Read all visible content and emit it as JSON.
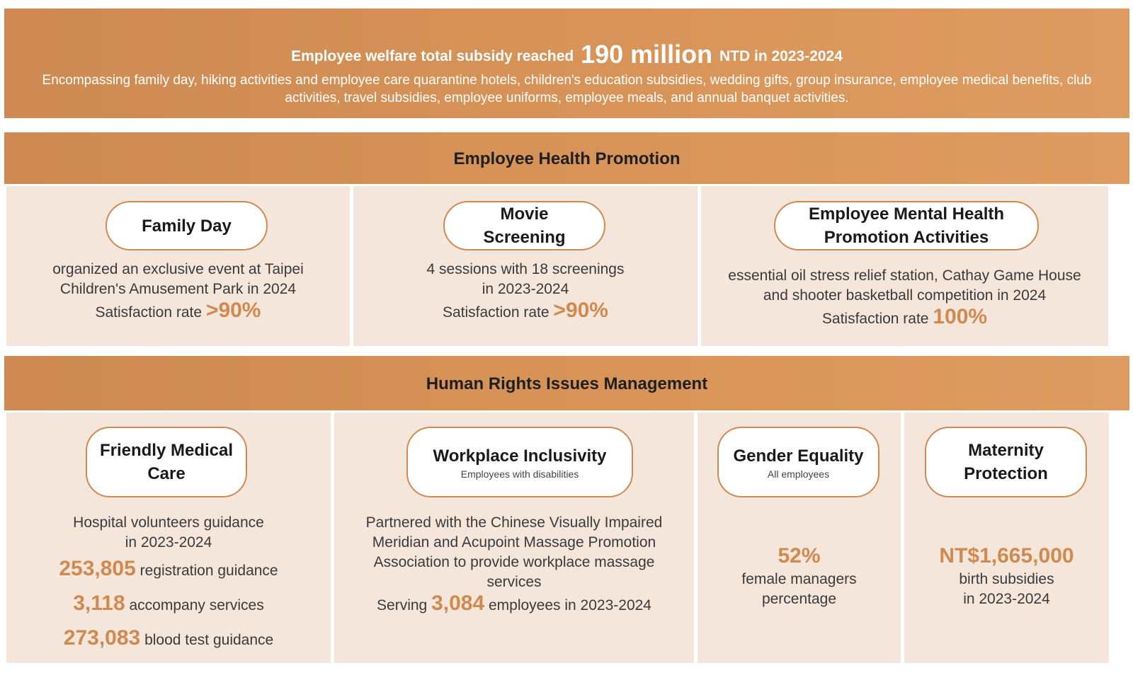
{
  "banner": {
    "headline_pre": "Employee welfare total subsidy reached",
    "headline_amount": "190 million",
    "headline_post": "NTD in 2023-2024",
    "description": "Encompassing family day, hiking activities and employee care quarantine hotels, children's education subsidies, wedding gifts, group insurance, employee medical benefits, club activities, travel subsidies, employee uniforms, employee meals, and annual banquet activities."
  },
  "health_promotion": {
    "title": "Employee Health Promotion",
    "cards": [
      {
        "title": "Family Day",
        "lines": [
          "organized an exclusive event at Taipei",
          "Children's Amusement Park in 2024"
        ],
        "rate_label": "Satisfaction rate",
        "rate_value": ">90%"
      },
      {
        "title_line1": "Movie",
        "title_line2": "Screening",
        "lines": [
          "4 sessions with 18 screenings",
          "in 2023-2024"
        ],
        "rate_label": "Satisfaction rate",
        "rate_value": ">90%"
      },
      {
        "title_line1": "Employee Mental Health",
        "title_line2": "Promotion Activities",
        "lines": [
          "essential oil stress relief station, Cathay Game House",
          "and shooter basketball competition in 2024"
        ],
        "rate_label": "Satisfaction rate",
        "rate_value": "100%"
      }
    ]
  },
  "human_rights": {
    "title": "Human Rights Issues Management",
    "cards": [
      {
        "title_line1": "Friendly Medical",
        "title_line2": "Care",
        "lines": [
          "Hospital volunteers guidance",
          "in 2023-2024"
        ],
        "stats": [
          {
            "value": "253,805",
            "label": "registration guidance"
          },
          {
            "value": "3,118",
            "label": "accompany services"
          },
          {
            "value": "273,083",
            "label": "blood test guidance"
          }
        ]
      },
      {
        "title": "Workplace Inclusivity",
        "subtitle": "Employees with disabilities",
        "lines": [
          "Partnered with the Chinese Visually Impaired",
          "Meridian and Acupoint Massage Promotion",
          "Association to provide workplace massage",
          "services"
        ],
        "serving_pre": "Serving",
        "serving_value": "3,084",
        "serving_post": "employees in 2023-2024"
      },
      {
        "title": "Gender Equality",
        "subtitle": "All employees",
        "value": "52%",
        "lines": [
          "female managers",
          "percentage"
        ]
      },
      {
        "title_line1": "Maternity",
        "title_line2": "Protection",
        "value": "NT$1,665,000",
        "lines": [
          "birth subsidies",
          "in 2023-2024"
        ]
      }
    ]
  },
  "colors": {
    "accent": "#d08a50",
    "band": "#d38f56",
    "panel": "#f5e6dc",
    "pill_border": "#cf8a52"
  }
}
